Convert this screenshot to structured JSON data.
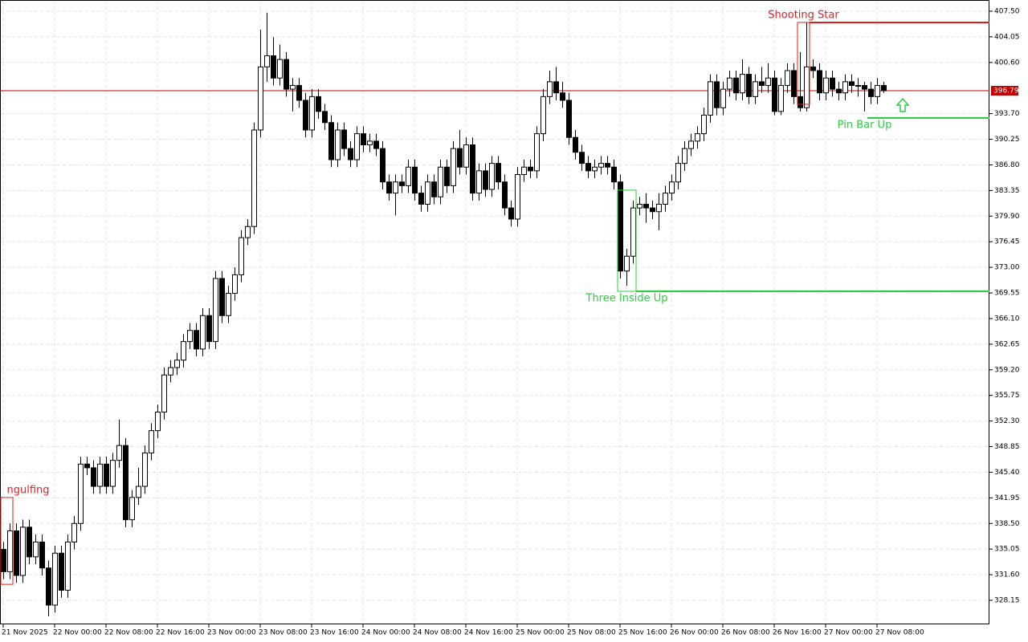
{
  "chart_data": {
    "type": "candlestick",
    "xlim": [
      -0.5,
      153.5
    ],
    "xticks": [
      {
        "value": 0,
        "label": "21 Nov 2025"
      },
      {
        "value": 8,
        "label": "22 Nov 00:00"
      },
      {
        "value": 16,
        "label": "22 Nov 08:00"
      },
      {
        "value": 24,
        "label": "22 Nov 16:00"
      },
      {
        "value": 32,
        "label": "23 Nov 00:00"
      },
      {
        "value": 40,
        "label": "23 Nov 08:00"
      },
      {
        "value": 48,
        "label": "23 Nov 16:00"
      },
      {
        "value": 56,
        "label": "24 Nov 00:00"
      },
      {
        "value": 64,
        "label": "24 Nov 08:00"
      },
      {
        "value": 72,
        "label": "24 Nov 16:00"
      },
      {
        "value": 80,
        "label": "25 Nov 00:00"
      },
      {
        "value": 88,
        "label": "25 Nov 08:00"
      },
      {
        "value": 96,
        "label": "25 Nov 16:00"
      },
      {
        "value": 104,
        "label": "26 Nov 00:00"
      },
      {
        "value": 112,
        "label": "26 Nov 08:00"
      },
      {
        "value": 120,
        "label": "26 Nov 16:00"
      },
      {
        "value": 128,
        "label": "27 Nov 00:00"
      },
      {
        "value": 136,
        "label": "27 Nov 08:00"
      }
    ],
    "ylim": [
      324.91,
      409.01
    ],
    "yticks": [
      {
        "value": 407.5,
        "label": "407.50"
      },
      {
        "value": 404.05,
        "label": "404.05"
      },
      {
        "value": 400.6,
        "label": "400.60"
      },
      {
        "value": 393.7,
        "label": "393.70"
      },
      {
        "value": 390.25,
        "label": "390.25"
      },
      {
        "value": 386.8,
        "label": "386.80"
      },
      {
        "value": 383.35,
        "label": "383.35"
      },
      {
        "value": 379.9,
        "label": "379.90"
      },
      {
        "value": 376.45,
        "label": "376.45"
      },
      {
        "value": 373.0,
        "label": "373.00"
      },
      {
        "value": 369.55,
        "label": "369.55"
      },
      {
        "value": 366.1,
        "label": "366.10"
      },
      {
        "value": 362.65,
        "label": "362.65"
      },
      {
        "value": 359.2,
        "label": "359.20"
      },
      {
        "value": 355.75,
        "label": "355.75"
      },
      {
        "value": 352.3,
        "label": "352.30"
      },
      {
        "value": 348.85,
        "label": "348.85"
      },
      {
        "value": 345.4,
        "label": "345.40"
      },
      {
        "value": 341.95,
        "label": "341.95"
      },
      {
        "value": 338.5,
        "label": "338.50"
      },
      {
        "value": 335.05,
        "label": "335.05"
      },
      {
        "value": 331.6,
        "label": "331.60"
      },
      {
        "value": 328.15,
        "label": "328.15"
      }
    ],
    "grid": true,
    "bull_color": "#ffffff",
    "bear_color": "#000000",
    "line_color": "#000000",
    "last_price": 396.79,
    "last_price_color": "#c00000",
    "open": [
      335.0,
      332.0,
      337.5,
      331.5,
      338.0,
      334.0,
      336.0,
      332.5,
      327.5,
      334.5,
      329.5,
      336.0,
      338.5,
      346.5,
      346.0,
      343.5,
      346.5,
      343.5,
      347.0,
      349.0,
      339.0,
      342.0,
      343.5,
      348.0,
      351.0,
      353.5,
      358.5,
      359.5,
      360.5,
      363.0,
      364.5,
      362.0,
      366.5,
      363.0,
      371.5,
      366.5,
      369.5,
      372.0,
      377.0,
      378.5,
      391.5,
      400.0,
      401.5,
      398.5,
      401.0,
      397.0,
      397.5,
      395.5,
      391.5,
      396.0,
      394.0,
      392.5,
      387.5,
      391.5,
      389.0,
      387.5,
      391.0,
      389.5,
      390.0,
      389.0,
      384.5,
      383.0,
      384.5,
      384.0,
      386.5,
      383.0,
      381.5,
      384.5,
      382.5,
      386.5,
      384.0,
      389.0,
      386.5,
      389.5,
      383.0,
      386.0,
      383.5,
      387.0,
      384.5,
      381.0,
      379.5,
      385.5,
      386.5,
      386.0,
      391.0,
      396.0,
      398.0,
      396.5,
      395.5,
      390.5,
      388.5,
      387.0,
      386.0,
      386.5,
      387.0,
      386.5,
      384.5,
      372.5,
      374.5,
      381.0,
      381.5,
      381.0,
      380.5,
      381.5,
      383.0,
      384.5,
      387.0,
      389.0,
      390.0,
      391.0,
      393.5,
      398.0,
      394.5,
      397.0,
      398.5,
      396.5,
      399.0,
      396.0,
      398.0,
      397.5,
      398.5,
      394.0,
      397.5,
      399.5,
      396.0,
      394.5,
      400.0,
      399.5,
      396.5,
      398.5,
      397.0,
      396.5,
      398.0,
      397.5,
      397.5,
      397.0,
      396.0,
      397.5
    ],
    "high": [
      336,
      338.5,
      338.5,
      339,
      339,
      337,
      337,
      333.5,
      335.5,
      335.5,
      337,
      339.5,
      347.5,
      347.5,
      347,
      347.5,
      347.5,
      348,
      352.5,
      350,
      343,
      346,
      349,
      352,
      354.5,
      359.5,
      360.5,
      361.5,
      364,
      365.5,
      365.5,
      367.5,
      367.5,
      372.5,
      372.5,
      370.5,
      373,
      378,
      379.5,
      392.5,
      405,
      407.3,
      404,
      403,
      402,
      398.5,
      398.5,
      396.5,
      397,
      397,
      395,
      393.5,
      392.5,
      392.5,
      390,
      392,
      392,
      391,
      391,
      390,
      385.5,
      385.5,
      385.5,
      387.5,
      387.5,
      384,
      385.5,
      385.5,
      387.5,
      387.5,
      390,
      391.5,
      390.5,
      390.5,
      387,
      387,
      388,
      388,
      385.5,
      382,
      386.5,
      387.5,
      387.5,
      392,
      397,
      399.5,
      400,
      398,
      396.5,
      391.5,
      389.5,
      388,
      387.5,
      388,
      388,
      387.5,
      385.5,
      375.5,
      382,
      382.5,
      383,
      382,
      383,
      384,
      385.5,
      388,
      390,
      391,
      392,
      394.5,
      399,
      399,
      398,
      399.5,
      399.5,
      401,
      400,
      399,
      400,
      400.5,
      399.5,
      398.5,
      400.5,
      400.5,
      402,
      406,
      401,
      400.5,
      399.5,
      399.5,
      398,
      399,
      399,
      398.5,
      398,
      398,
      398.5,
      398
    ],
    "low": [
      331,
      331,
      330.5,
      330.5,
      333,
      333,
      331.5,
      326,
      326.5,
      328.5,
      328.5,
      335,
      337.5,
      345,
      342.5,
      342.5,
      342.5,
      342.5,
      346,
      338,
      338,
      341,
      342.5,
      347,
      350,
      352.5,
      357.5,
      358.5,
      359.5,
      362,
      361,
      361,
      362,
      362,
      365.5,
      365.5,
      368.5,
      371,
      376,
      377.5,
      390.5,
      398,
      397.5,
      397.5,
      396,
      394,
      394.5,
      390.5,
      390.5,
      393,
      391.5,
      386.5,
      386.5,
      388,
      386.5,
      386.5,
      388.5,
      388.5,
      388,
      383.5,
      382,
      380,
      383,
      383,
      382,
      380.5,
      380.5,
      381.5,
      381.5,
      383,
      383,
      385.5,
      385.5,
      382,
      382,
      382.5,
      382.5,
      383.5,
      380,
      378.5,
      378.5,
      384.5,
      385,
      385,
      390,
      395,
      395.5,
      394.5,
      389.5,
      387.5,
      386,
      385,
      385,
      385.5,
      385.5,
      383.5,
      371.5,
      370.5,
      373.5,
      380,
      379,
      379.5,
      378,
      380.5,
      382,
      383.5,
      386,
      388,
      389,
      390,
      392.5,
      393.5,
      393.5,
      396,
      395.5,
      395.5,
      395,
      395,
      396.5,
      396.5,
      393.5,
      393.5,
      396.5,
      395,
      394,
      394,
      398.5,
      395.5,
      395.5,
      396,
      395.5,
      395.5,
      396.5,
      396,
      394,
      395,
      395,
      396.5
    ],
    "close": [
      332.0,
      337.5,
      331.5,
      338.0,
      334.0,
      336.0,
      332.5,
      327.5,
      334.5,
      329.5,
      336.0,
      338.5,
      346.5,
      346.0,
      343.5,
      346.5,
      343.5,
      347.0,
      349.0,
      339.0,
      342.0,
      343.5,
      348.0,
      351.0,
      353.5,
      358.5,
      359.5,
      360.5,
      363.0,
      364.5,
      362.0,
      366.5,
      363.0,
      371.5,
      366.5,
      369.5,
      372.0,
      377.0,
      378.5,
      391.5,
      400.0,
      401.5,
      398.5,
      401.0,
      397.0,
      397.5,
      395.5,
      391.5,
      396.0,
      394.0,
      392.5,
      387.5,
      391.5,
      389.0,
      387.5,
      391.0,
      389.5,
      390.0,
      389.0,
      384.5,
      383.0,
      384.5,
      384.0,
      386.5,
      383.0,
      381.5,
      384.5,
      382.5,
      386.5,
      384.0,
      389.0,
      386.5,
      389.5,
      383.0,
      386.0,
      383.5,
      387.0,
      384.5,
      381.0,
      379.5,
      385.5,
      386.5,
      386.0,
      391.0,
      396.0,
      398.0,
      396.5,
      395.5,
      390.5,
      388.5,
      387.0,
      386.0,
      386.5,
      387.0,
      386.5,
      384.5,
      372.5,
      374.5,
      381.0,
      381.5,
      381.0,
      380.5,
      381.5,
      383.0,
      384.5,
      387.0,
      389.0,
      390.0,
      391.0,
      393.5,
      398.0,
      394.5,
      397.0,
      398.5,
      396.5,
      399.0,
      396.0,
      398.0,
      397.5,
      398.5,
      394.0,
      397.5,
      399.5,
      396.0,
      394.5,
      400.0,
      399.5,
      396.5,
      398.5,
      397.0,
      396.5,
      398.0,
      397.5,
      397.5,
      397.0,
      396.0,
      397.5,
      396.79
    ],
    "patterns": [
      {
        "label": "ngulfing",
        "kind": "bearish",
        "color": "#e01e1e",
        "start": 0,
        "end": 1,
        "box": [
          330.3,
          342.0
        ]
      },
      {
        "label": "Three Inside Up",
        "kind": "bullish",
        "color": "#2ecc40",
        "start": 96,
        "end": 98,
        "box": [
          369.77,
          383.4
        ],
        "level": 369.77
      },
      {
        "label": "Shooting Star",
        "kind": "bearish",
        "color": "#e01e1e",
        "start": 124,
        "end": 125,
        "box": [
          394.96,
          405.99
        ],
        "level": 405.99
      },
      {
        "label": "Pin Bar Up",
        "kind": "bullish",
        "color": "#2ecc40",
        "start": 134,
        "end": 134,
        "box": [
          393.12,
          393.12
        ],
        "level": 393.12
      }
    ]
  }
}
